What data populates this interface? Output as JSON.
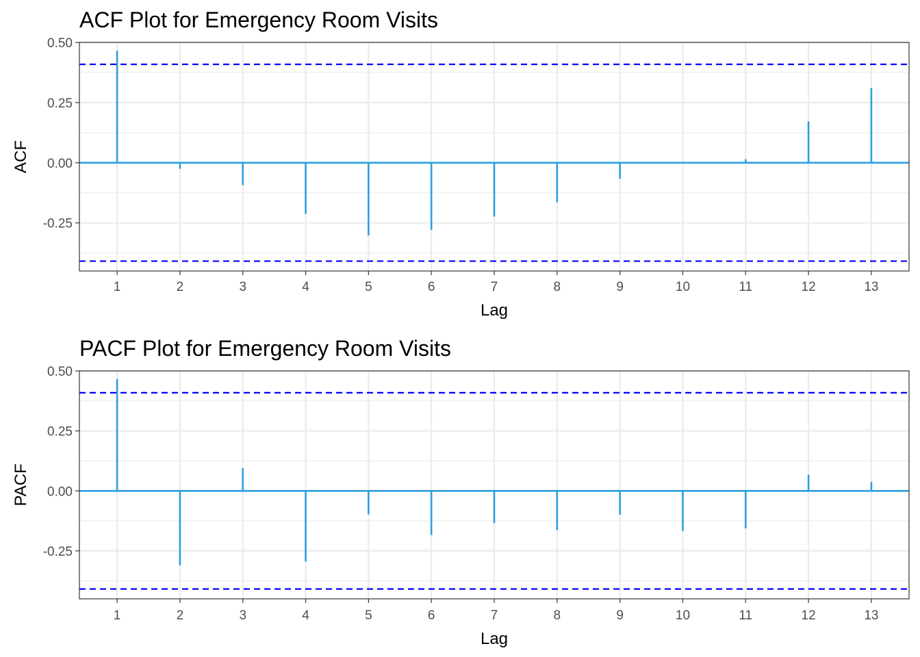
{
  "chart_data": [
    {
      "type": "bar",
      "title": "ACF Plot for Emergency Room Visits",
      "xlabel": "Lag",
      "ylabel": "ACF",
      "x": [
        1,
        2,
        3,
        4,
        5,
        6,
        7,
        8,
        9,
        10,
        11,
        12,
        13
      ],
      "x_tick_labels": [
        "1",
        "2",
        "3",
        "4",
        "5",
        "6",
        "7",
        "8",
        "9",
        "10",
        "11",
        "12",
        "13"
      ],
      "values": [
        0.466,
        -0.025,
        -0.093,
        -0.213,
        -0.302,
        -0.279,
        -0.224,
        -0.164,
        -0.067,
        -0.002,
        0.015,
        0.172,
        0.311
      ],
      "y_ticks": [
        0.5,
        0.25,
        0,
        -0.25
      ],
      "y_tick_labels": [
        "0.50",
        "0.25",
        "0.00",
        "-0.25"
      ],
      "ylim": [
        -0.45,
        0.5
      ],
      "xlim": [
        0.4,
        13.6
      ],
      "confidence_bounds": [
        0.409,
        -0.409
      ],
      "colors": {
        "bars": "#2a9fe0",
        "zero_line": "#2a9fe0",
        "bounds": "#0000ff",
        "grid": "#ebebeb",
        "panel_border": "#333333"
      },
      "grid": true,
      "legend": "none"
    },
    {
      "type": "bar",
      "title": "PACF Plot for Emergency Room Visits",
      "xlabel": "Lag",
      "ylabel": "PACF",
      "x": [
        1,
        2,
        3,
        4,
        5,
        6,
        7,
        8,
        9,
        10,
        11,
        12,
        13
      ],
      "x_tick_labels": [
        "1",
        "2",
        "3",
        "4",
        "5",
        "6",
        "7",
        "8",
        "9",
        "10",
        "11",
        "12",
        "13"
      ],
      "values": [
        0.466,
        -0.311,
        0.095,
        -0.295,
        -0.098,
        -0.184,
        -0.134,
        -0.163,
        -0.099,
        -0.167,
        -0.156,
        0.067,
        0.038
      ],
      "y_ticks": [
        0.5,
        0.25,
        0,
        -0.25
      ],
      "y_tick_labels": [
        "0.50",
        "0.25",
        "0.00",
        "-0.25"
      ],
      "ylim": [
        -0.45,
        0.5
      ],
      "xlim": [
        0.4,
        13.6
      ],
      "confidence_bounds": [
        0.409,
        -0.409
      ],
      "colors": {
        "bars": "#2a9fe0",
        "zero_line": "#2a9fe0",
        "bounds": "#0000ff",
        "grid": "#ebebeb",
        "panel_border": "#333333"
      },
      "grid": true,
      "legend": "none"
    }
  ]
}
